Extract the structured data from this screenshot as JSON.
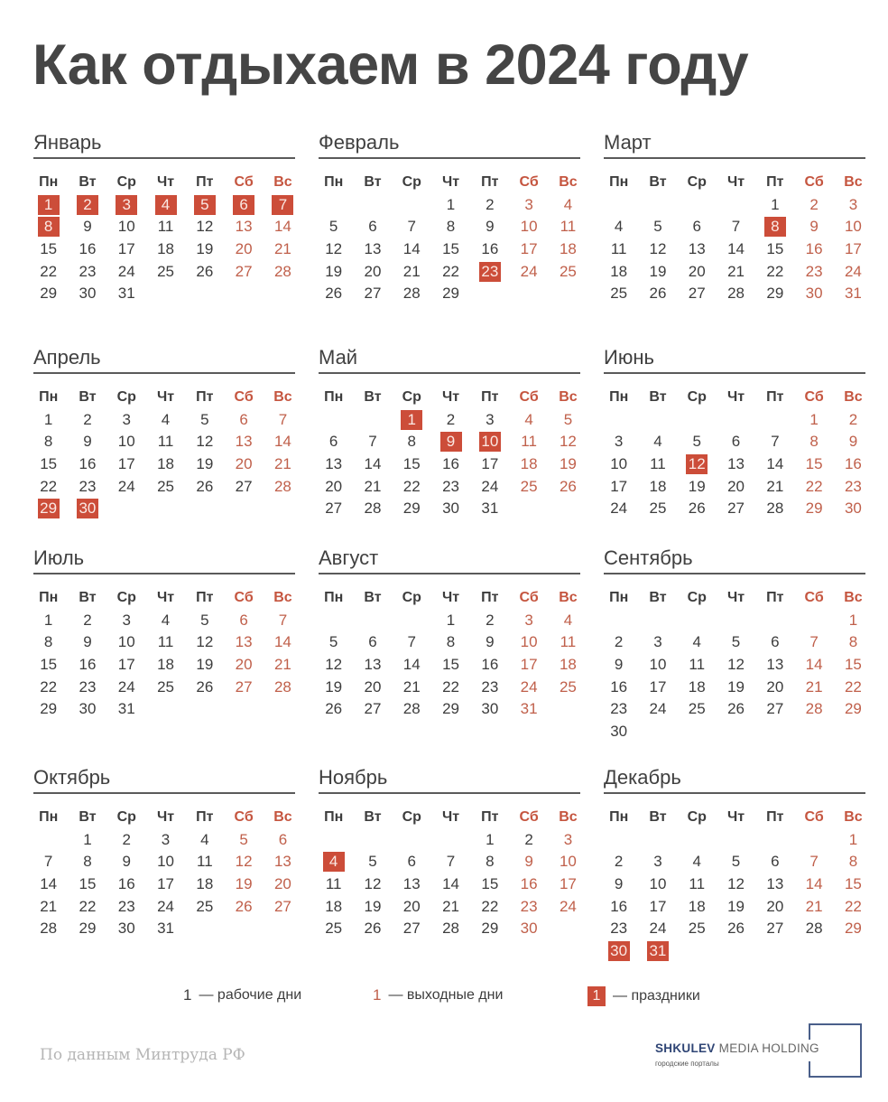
{
  "title": "Как отдыхаем в 2024 году",
  "weekdays": [
    "Пн",
    "Вт",
    "Ср",
    "Чт",
    "Пт",
    "Сб",
    "Вс"
  ],
  "colors": {
    "holiday_bg": "#cc4d39",
    "weekend_text": "#c0604b",
    "text": "#3d3d3d"
  },
  "months": [
    {
      "name": "Январь",
      "offset": 0,
      "days": 31,
      "holidays": [
        1,
        2,
        3,
        4,
        5,
        6,
        7,
        8
      ],
      "weekends": [
        13,
        14,
        20,
        21,
        27,
        28
      ]
    },
    {
      "name": "Февраль",
      "offset": 3,
      "days": 29,
      "holidays": [
        23
      ],
      "weekends": [
        3,
        4,
        10,
        11,
        17,
        18,
        24,
        25
      ]
    },
    {
      "name": "Март",
      "offset": 4,
      "days": 31,
      "holidays": [
        8
      ],
      "weekends": [
        2,
        3,
        9,
        10,
        16,
        17,
        23,
        24,
        30,
        31
      ]
    },
    {
      "name": "Апрель",
      "offset": 0,
      "days": 30,
      "holidays": [
        29,
        30
      ],
      "weekends": [
        6,
        7,
        13,
        14,
        20,
        21,
        28
      ]
    },
    {
      "name": "Май",
      "offset": 2,
      "days": 31,
      "holidays": [
        1,
        9,
        10
      ],
      "weekends": [
        4,
        5,
        11,
        12,
        18,
        19,
        25,
        26
      ]
    },
    {
      "name": "Июнь",
      "offset": 5,
      "days": 30,
      "holidays": [
        12
      ],
      "weekends": [
        1,
        2,
        8,
        9,
        15,
        16,
        22,
        23,
        29,
        30
      ]
    },
    {
      "name": "Июль",
      "offset": 0,
      "days": 31,
      "holidays": [],
      "weekends": [
        6,
        7,
        13,
        14,
        20,
        21,
        27,
        28
      ]
    },
    {
      "name": "Август",
      "offset": 3,
      "days": 31,
      "holidays": [],
      "weekends": [
        3,
        4,
        10,
        11,
        17,
        18,
        24,
        25,
        31
      ]
    },
    {
      "name": "Сентябрь",
      "offset": 6,
      "days": 30,
      "holidays": [],
      "weekends": [
        1,
        7,
        8,
        14,
        15,
        21,
        22,
        28,
        29
      ]
    },
    {
      "name": "Октябрь",
      "offset": 1,
      "days": 31,
      "holidays": [],
      "weekends": [
        5,
        6,
        12,
        13,
        19,
        20,
        26,
        27
      ]
    },
    {
      "name": "Ноябрь",
      "offset": 4,
      "days": 30,
      "holidays": [
        4
      ],
      "weekends": [
        3,
        9,
        10,
        16,
        17,
        23,
        24,
        30
      ]
    },
    {
      "name": "Декабрь",
      "offset": 6,
      "days": 31,
      "holidays": [
        30,
        31
      ],
      "weekends": [
        1,
        7,
        8,
        14,
        15,
        21,
        22,
        29
      ]
    }
  ],
  "legend": {
    "sample": "1",
    "workdays": "— рабочие дни",
    "weekends": "— выходные дни",
    "holidays": "— праздники"
  },
  "source": "По данным Минтруда РФ",
  "logo": {
    "brand_bold": "SHKULEV",
    "brand_rest": "MEDIA HOLDING",
    "tagline": "городские порталы"
  }
}
